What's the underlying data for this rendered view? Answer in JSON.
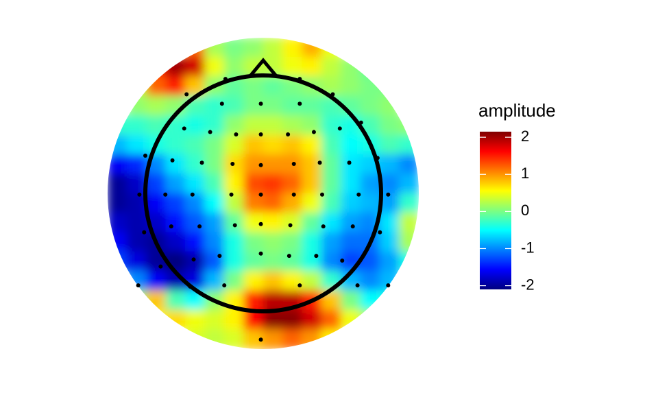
{
  "chart_data": {
    "type": "topoplot",
    "legend_title": "amplitude",
    "xlim": [
      -1.32,
      1.32
    ],
    "ylim": [
      -1.32,
      1.32
    ],
    "clim": [
      -2.1,
      2.15
    ],
    "cticks": [
      -2,
      -1,
      0,
      1,
      2
    ],
    "colors": [
      "#00007F",
      "#0000FF",
      "#007FFF",
      "#00FFFF",
      "#7FFF7F",
      "#FFFF00",
      "#FF7F00",
      "#FF0000",
      "#7F0000"
    ],
    "z": [
      [
        null,
        null,
        null,
        null,
        1.2,
        0.2,
        0,
        0.1,
        0.3,
        0.6,
        0.9,
        0.5,
        null,
        null,
        null,
        null
      ],
      [
        null,
        null,
        1.5,
        2.0,
        1.8,
        0.5,
        0.1,
        0.3,
        0.3,
        0.5,
        0.6,
        0.3,
        0.1,
        -0.1,
        null,
        null
      ],
      [
        null,
        0.3,
        1.2,
        1.5,
        0.8,
        0.1,
        -0.1,
        0,
        -0.1,
        0,
        0.1,
        0.2,
        0.1,
        0,
        0,
        null
      ],
      [
        null,
        0.1,
        0.2,
        0.1,
        -0.2,
        -0.3,
        -0.2,
        0,
        0,
        -0.1,
        -0.1,
        -0.2,
        -0.1,
        0,
        0.1,
        null
      ],
      [
        -0.3,
        -0.3,
        -0.2,
        -0.3,
        -0.4,
        -0.3,
        0.1,
        0.3,
        0.3,
        0.2,
        0.1,
        -0.3,
        -0.4,
        -0.2,
        0,
        0.1
      ],
      [
        -0.8,
        -0.6,
        -0.4,
        -0.3,
        -0.2,
        0,
        0.4,
        0.8,
        0.7,
        0.8,
        0.6,
        -0.2,
        -0.5,
        -0.4,
        -0.2,
        -0.3
      ],
      [
        -1.6,
        -1.4,
        -1.0,
        -0.6,
        -0.3,
        0,
        0.7,
        1.0,
        1.0,
        1.0,
        0.8,
        -0.1,
        -0.6,
        -0.7,
        -0.8,
        -1.0
      ],
      [
        -2.0,
        -1.8,
        -1.3,
        -0.9,
        -0.6,
        -0.2,
        0.6,
        1.3,
        1.4,
        1.2,
        0.8,
        -0.1,
        -0.6,
        -0.9,
        -1.0,
        -0.8
      ],
      [
        -2.0,
        -1.9,
        -1.6,
        -1.3,
        -1.0,
        -0.5,
        0.3,
        1.1,
        1.2,
        0.9,
        0.5,
        -0.2,
        -0.7,
        -0.8,
        -0.9,
        -0.3
      ],
      [
        -1.8,
        -1.9,
        -1.8,
        -1.5,
        -1.2,
        -0.9,
        -0.1,
        0.5,
        0.6,
        0.4,
        -0.1,
        -0.6,
        -0.9,
        -1.0,
        -0.6,
        0.3
      ],
      [
        -1.6,
        -1.9,
        -2.0,
        -1.8,
        -1.5,
        -1.0,
        -0.4,
        0,
        0.1,
        0,
        -0.4,
        -0.9,
        -1.1,
        -1.1,
        -0.7,
        0.2
      ],
      [
        -1.3,
        -1.7,
        -2.0,
        -2.1,
        -1.9,
        -1.2,
        -0.4,
        -0.1,
        0,
        -0.1,
        -0.4,
        -1.0,
        -1.3,
        -1.2,
        -0.9,
        -0.4
      ],
      [
        null,
        -1.0,
        -1.6,
        -1.9,
        -1.7,
        -0.8,
        0,
        0.6,
        0.8,
        0.6,
        0.3,
        -0.3,
        -0.8,
        -1.0,
        -0.8,
        null
      ],
      [
        null,
        0.2,
        0.8,
        -0.2,
        -0.5,
        0.1,
        0.6,
        1.5,
        1.9,
        1.9,
        1.5,
        0.8,
        0,
        -0.5,
        -0.4,
        null
      ],
      [
        null,
        null,
        0.6,
        0.7,
        0.5,
        0.4,
        0.6,
        1.6,
        2.1,
        2.1,
        1.8,
        1.2,
        0.5,
        0.2,
        null,
        null
      ],
      [
        null,
        null,
        null,
        null,
        0.4,
        0.3,
        0.4,
        0.8,
        1.0,
        1.2,
        1.0,
        0.6,
        null,
        null,
        null,
        null
      ]
    ],
    "electrodes": [
      [
        -0.32,
        0.97
      ],
      [
        0.31,
        0.97
      ],
      [
        -0.65,
        0.84
      ],
      [
        0.59,
        0.84
      ],
      [
        -0.35,
        0.76
      ],
      [
        -0.02,
        0.76
      ],
      [
        0.31,
        0.76
      ],
      [
        0.83,
        0.6
      ],
      [
        -0.67,
        0.55
      ],
      [
        -0.45,
        0.52
      ],
      [
        -0.23,
        0.5
      ],
      [
        -0.02,
        0.5
      ],
      [
        0.21,
        0.5
      ],
      [
        0.43,
        0.52
      ],
      [
        0.65,
        0.55
      ],
      [
        -1.0,
        0.32
      ],
      [
        -0.77,
        0.28
      ],
      [
        -0.52,
        0.26
      ],
      [
        -0.26,
        0.25
      ],
      [
        -0.02,
        0.24
      ],
      [
        0.26,
        0.25
      ],
      [
        0.48,
        0.26
      ],
      [
        0.73,
        0.26
      ],
      [
        0.97,
        0.3
      ],
      [
        -1.05,
        -0.01
      ],
      [
        -0.83,
        -0.01
      ],
      [
        -0.6,
        -0.01
      ],
      [
        -0.27,
        -0.01
      ],
      [
        -0.02,
        -0.01
      ],
      [
        0.26,
        -0.01
      ],
      [
        0.5,
        -0.01
      ],
      [
        0.81,
        -0.01
      ],
      [
        1.06,
        -0.01
      ],
      [
        -1.01,
        -0.33
      ],
      [
        -0.78,
        -0.28
      ],
      [
        -0.54,
        -0.28
      ],
      [
        -0.24,
        -0.27
      ],
      [
        -0.02,
        -0.26
      ],
      [
        0.23,
        -0.27
      ],
      [
        0.51,
        -0.28
      ],
      [
        0.76,
        -0.28
      ],
      [
        0.99,
        -0.33
      ],
      [
        -0.87,
        -0.62
      ],
      [
        -0.59,
        -0.56
      ],
      [
        -0.37,
        -0.53
      ],
      [
        -0.02,
        -0.51
      ],
      [
        0.22,
        -0.53
      ],
      [
        0.45,
        -0.53
      ],
      [
        0.67,
        -0.57
      ],
      [
        -1.06,
        -0.78
      ],
      [
        -0.62,
        -0.79
      ],
      [
        -0.33,
        -0.78
      ],
      [
        0.31,
        -0.78
      ],
      [
        0.8,
        -0.78
      ],
      [
        1.06,
        -0.78
      ],
      [
        -0.02,
        -1.24
      ]
    ]
  }
}
